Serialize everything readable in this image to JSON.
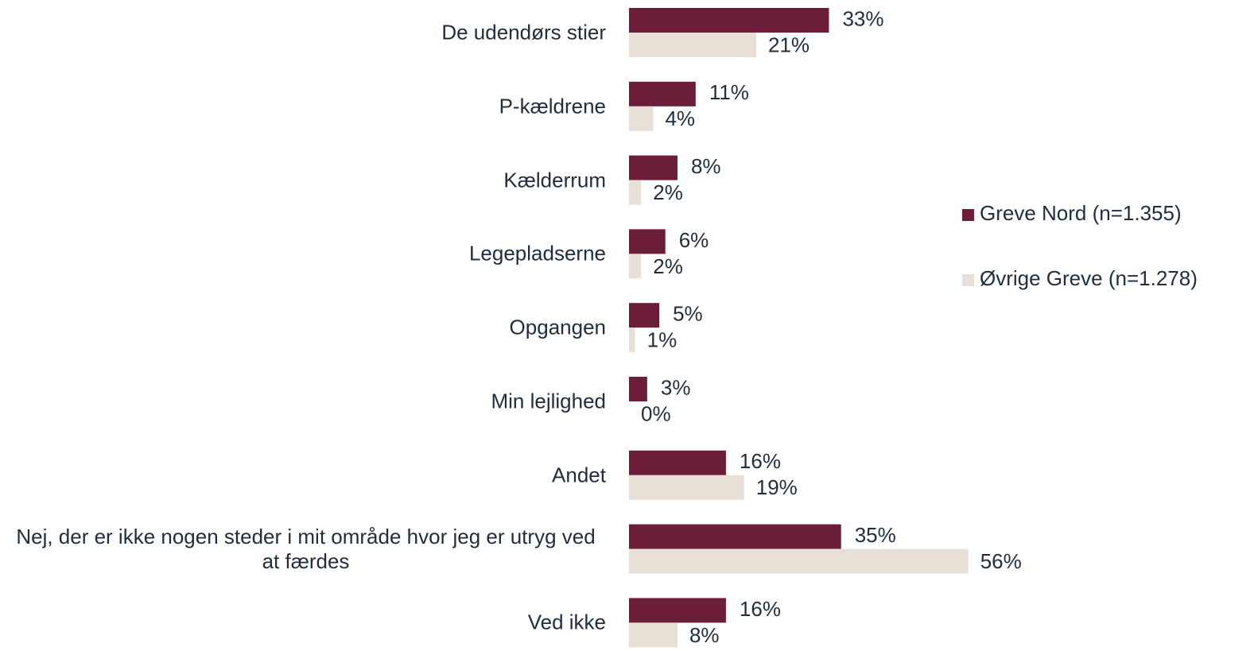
{
  "chart_data": {
    "type": "bar",
    "orientation": "horizontal",
    "categories": [
      "De udendørs stier",
      "P-kældrene",
      "Kælderrum",
      "Legepladserne",
      "Opgangen",
      "Min lejlighed",
      "Andet",
      "Nej, der er ikke nogen steder i mit område hvor jeg er utryg ved at færdes",
      "Ved ikke"
    ],
    "series": [
      {
        "name": "Greve Nord (n=1.355)",
        "color": "#6b1d3a",
        "values": [
          33,
          11,
          8,
          6,
          5,
          3,
          16,
          35,
          16
        ],
        "value_labels": [
          "33%",
          "11%",
          "8%",
          "6%",
          "5%",
          "3%",
          "16%",
          "35%",
          "16%"
        ]
      },
      {
        "name": "Øvrige Greve (n=1.278)",
        "color": "#e8e0d6",
        "values": [
          21,
          4,
          2,
          2,
          1,
          0,
          19,
          56,
          8
        ],
        "value_labels": [
          "21%",
          "4%",
          "2%",
          "2%",
          "1%",
          "0%",
          "19%",
          "56%",
          "8%"
        ]
      }
    ],
    "legend": "right"
  }
}
